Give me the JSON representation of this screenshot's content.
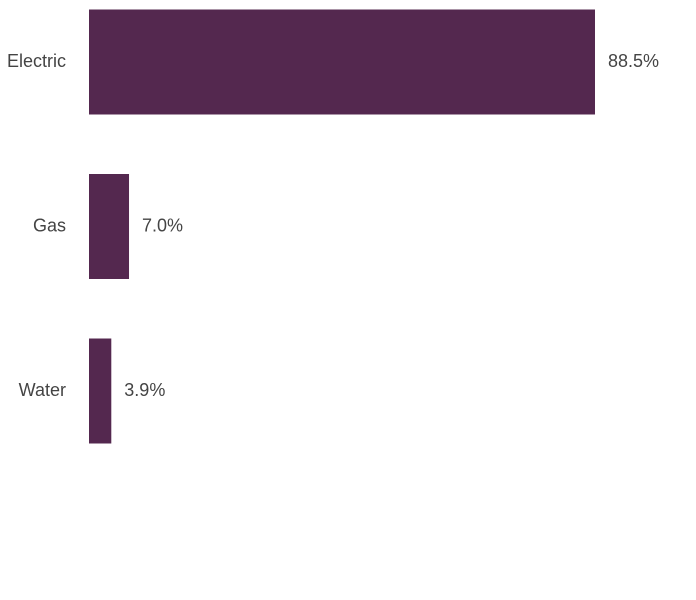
{
  "chart_data": {
    "type": "hbar",
    "categories": [
      "Electric",
      "Gas",
      "Water"
    ],
    "values": [
      88.5,
      7.0,
      3.9
    ],
    "value_labels": [
      "88.5%",
      "7.0%",
      "3.9%"
    ],
    "color": "#54284f"
  }
}
